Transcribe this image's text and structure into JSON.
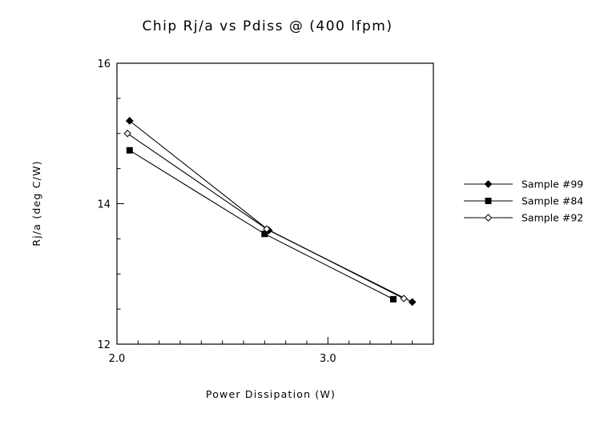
{
  "chart_data": {
    "type": "line",
    "title": "Chip Rj/a vs Pdiss @ (400 lfpm)",
    "xlabel": "Power Dissipation (W)",
    "ylabel": "Rj/a (deg C/W)",
    "xlim": [
      2.0,
      3.5
    ],
    "ylim": [
      12,
      16
    ],
    "xticks": [
      2.0,
      3.0
    ],
    "xtick_labels": [
      "2.0",
      "3.0"
    ],
    "yticks": [
      12,
      14,
      16
    ],
    "ytick_labels": [
      "12",
      "14",
      "16"
    ],
    "grid": false,
    "legend_position": "right",
    "series": [
      {
        "name": "Sample #99",
        "marker": "diamond-filled",
        "x": [
          2.06,
          2.72,
          3.4
        ],
        "y": [
          15.18,
          13.62,
          12.6
        ]
      },
      {
        "name": "Sample #84",
        "marker": "square-filled",
        "x": [
          2.06,
          2.7,
          3.31
        ],
        "y": [
          14.76,
          13.57,
          12.64
        ]
      },
      {
        "name": "Sample #92",
        "marker": "diamond-open",
        "x": [
          2.05,
          2.71,
          3.36
        ],
        "y": [
          15.0,
          13.64,
          12.65
        ]
      }
    ]
  }
}
